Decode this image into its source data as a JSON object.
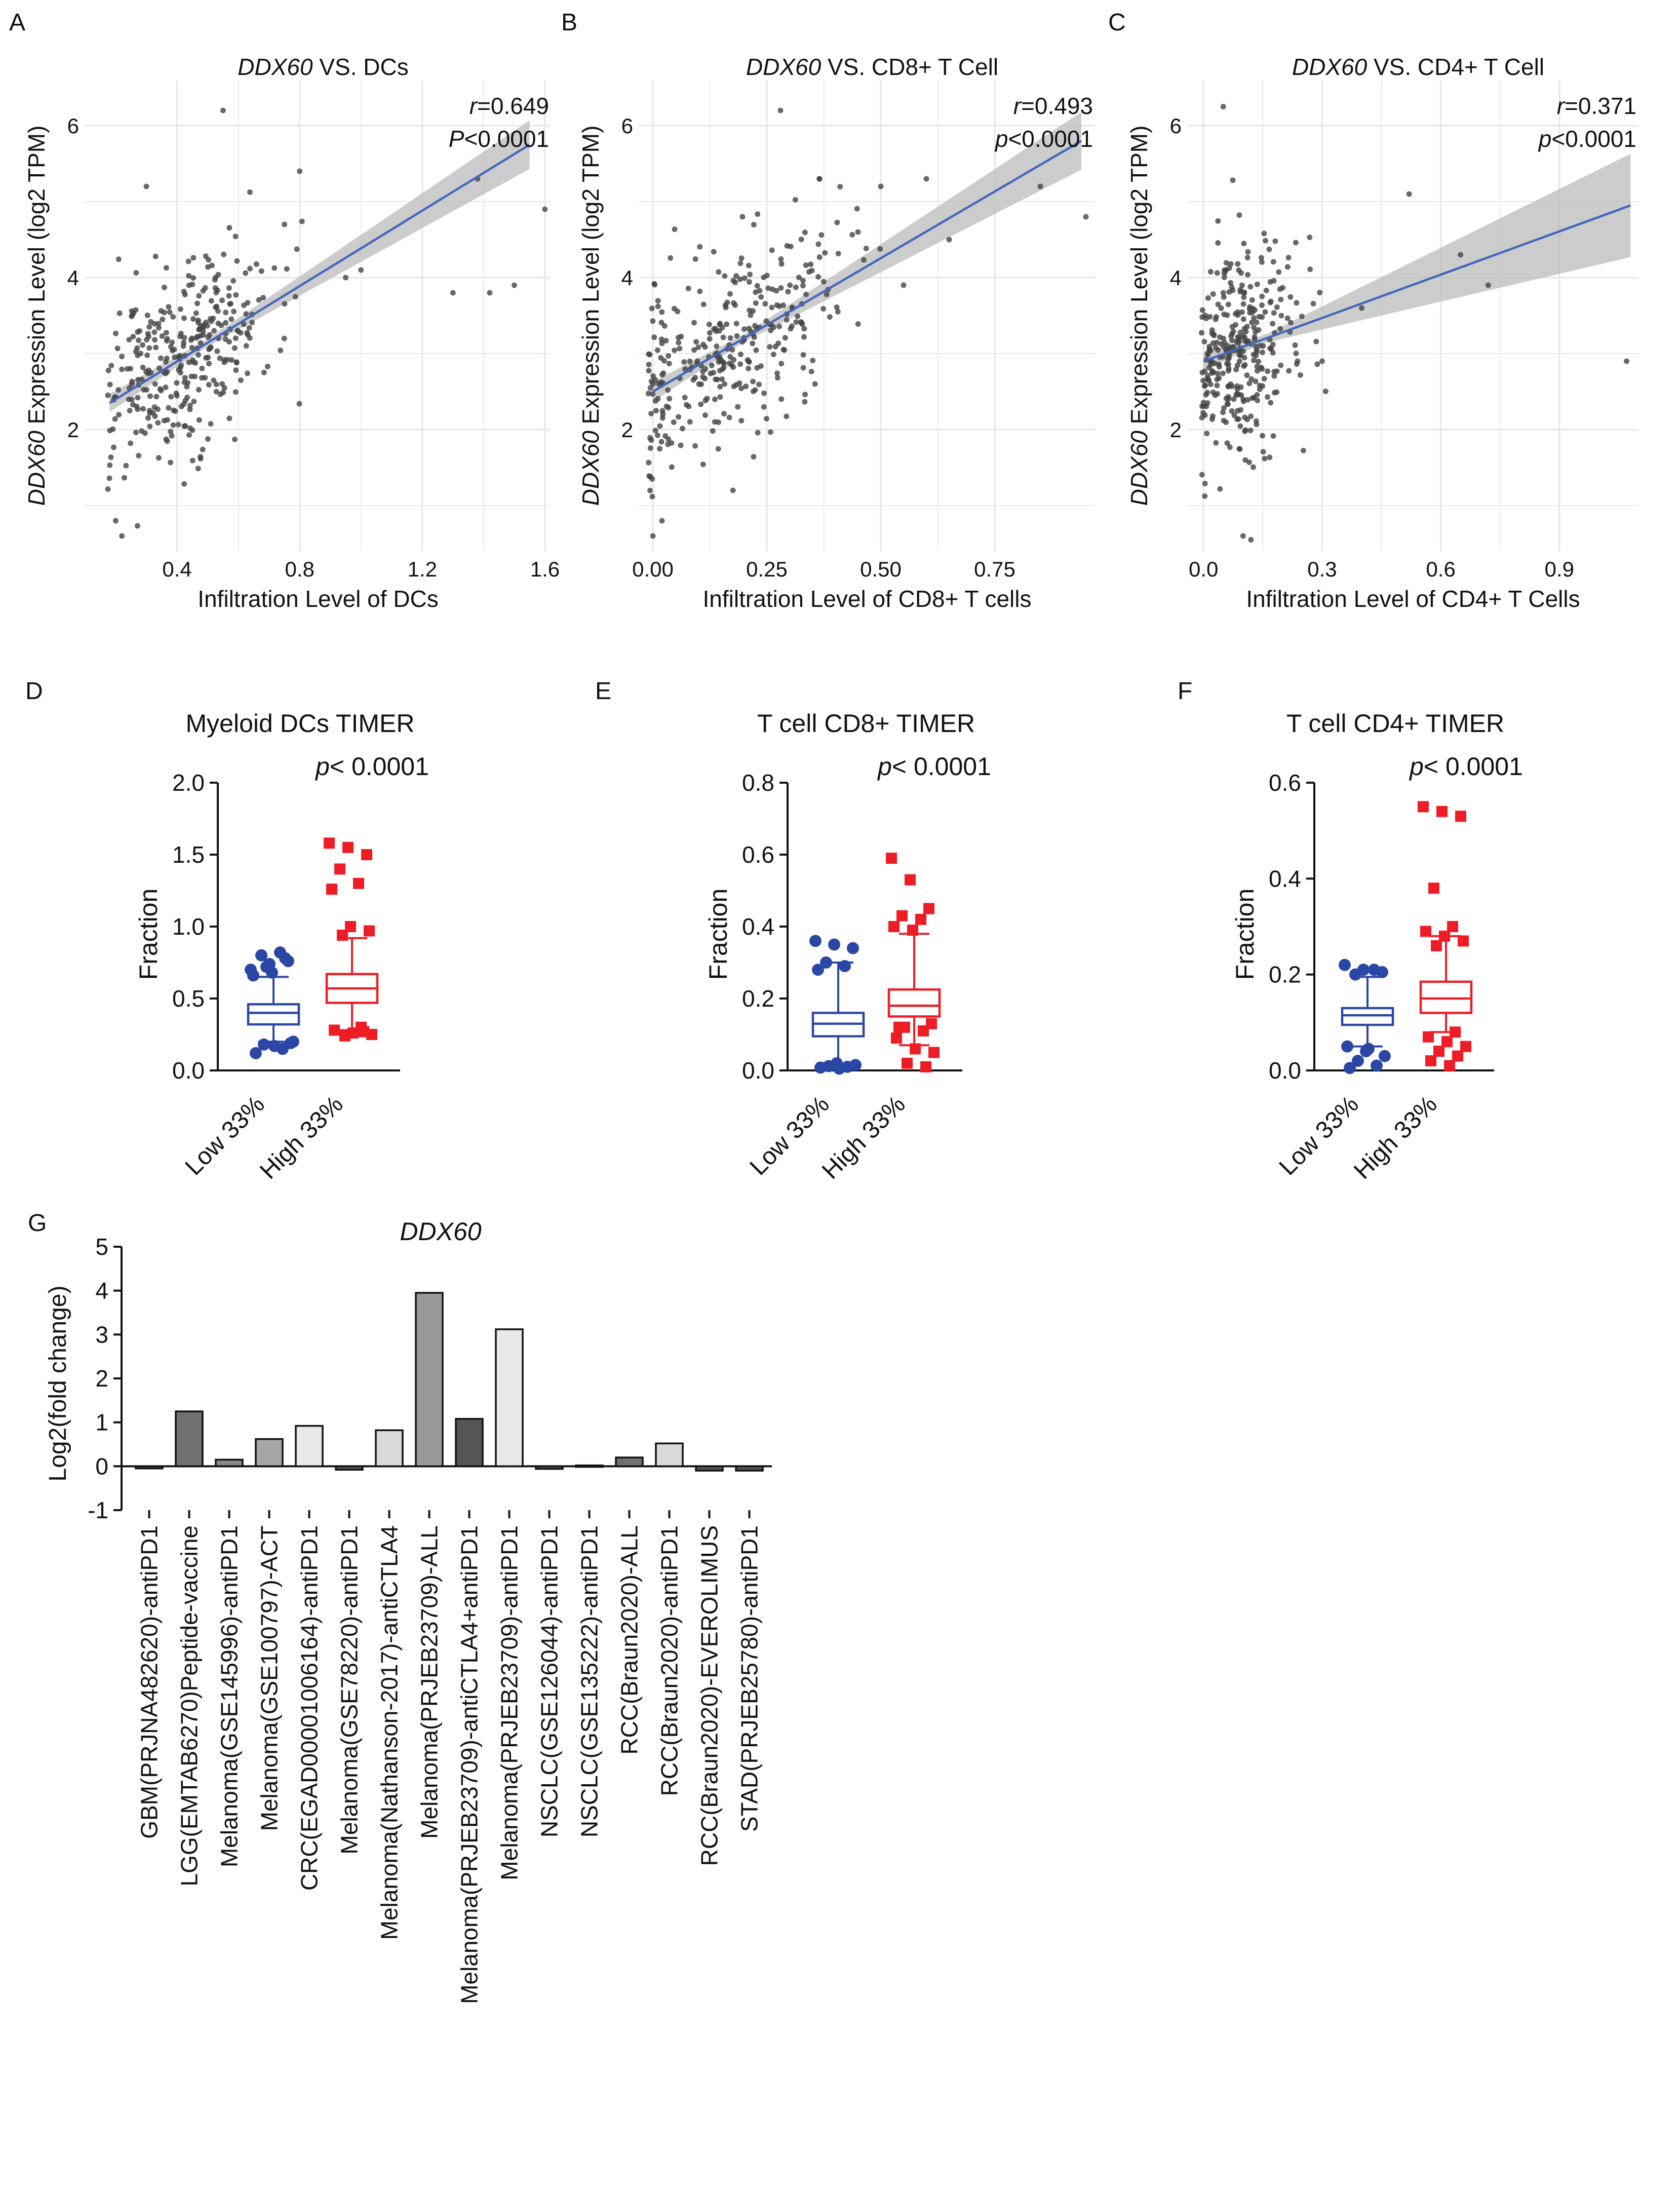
{
  "figure": {
    "panel_letters": [
      "A",
      "B",
      "C",
      "D",
      "E",
      "F",
      "G"
    ],
    "colors": {
      "point": "#444444",
      "fit_line": "#4466bb",
      "ci_band": "#bbbbbb",
      "grid": "#e6e6e6",
      "low_group": "#2a47a5",
      "high_group": "#ee1c25",
      "bar_outline": "#111111"
    }
  },
  "chart_data": [
    {
      "id": "A",
      "type": "scatter",
      "title": {
        "gene": "DDX60",
        "rest": " VS. DCs"
      },
      "stat1": {
        "label": "r",
        "text": "=0.649"
      },
      "stat2": {
        "label": "P",
        "text": "<0.0001"
      },
      "xlabel": "Infiltration Level of DCs",
      "ylabel": {
        "gene": "DDX60",
        "rest": " Expression Level (log2 TPM)"
      },
      "xlim": [
        0.1,
        1.62
      ],
      "ylim": [
        0.4,
        6.6
      ],
      "xticks": [
        0.4,
        0.8,
        1.2,
        1.6
      ],
      "xtick_labels": [
        "0.4",
        "0.8",
        "1.2",
        "1.6"
      ],
      "yticks": [
        2,
        4,
        6
      ],
      "ytick_labels": [
        "2",
        "4",
        "6"
      ],
      "fit": {
        "x0": 0.18,
        "y0": 2.35,
        "x1": 1.55,
        "y1": 5.75,
        "ci_x": [
          0.18,
          0.5,
          1.55
        ],
        "ci_half": [
          0.12,
          0.05,
          0.32
        ]
      },
      "outliers": [
        [
          0.55,
          6.2
        ],
        [
          0.8,
          5.4
        ],
        [
          1.38,
          5.3
        ],
        [
          1.6,
          4.9
        ],
        [
          1.42,
          3.8
        ],
        [
          1.3,
          3.8
        ],
        [
          1.5,
          3.9
        ],
        [
          0.3,
          5.2
        ],
        [
          0.2,
          0.8
        ],
        [
          0.22,
          0.6
        ],
        [
          1.0,
          4.1
        ],
        [
          0.95,
          4.0
        ]
      ]
    },
    {
      "id": "B",
      "type": "scatter",
      "title": {
        "gene": "DDX60",
        "rest": " VS. CD8+ T Cell"
      },
      "stat1": {
        "label": "r",
        "text": "=0.493"
      },
      "stat2": {
        "label": "p",
        "text": "<0.0001"
      },
      "xlabel": "Infiltration Level of CD8+ T cells",
      "ylabel": {
        "gene": "DDX60",
        "rest": " Expression Level (log2 TPM)"
      },
      "xlim": [
        -0.03,
        0.97
      ],
      "ylim": [
        0.4,
        6.6
      ],
      "xticks": [
        0.0,
        0.25,
        0.5,
        0.75
      ],
      "xtick_labels": [
        "0.00",
        "0.25",
        "0.50",
        "0.75"
      ],
      "yticks": [
        2,
        4,
        6
      ],
      "ytick_labels": [
        "2",
        "4",
        "6"
      ],
      "fit": {
        "x0": 0.0,
        "y0": 2.5,
        "x1": 0.94,
        "y1": 5.8,
        "ci_x": [
          0.0,
          0.2,
          0.94
        ],
        "ci_half": [
          0.13,
          0.05,
          0.38
        ]
      },
      "outliers": [
        [
          0.28,
          6.2
        ],
        [
          0.6,
          5.3
        ],
        [
          0.85,
          5.2
        ],
        [
          0.95,
          4.8
        ],
        [
          0.65,
          4.5
        ],
        [
          0.0,
          0.6
        ],
        [
          0.02,
          0.8
        ],
        [
          0.55,
          3.9
        ],
        [
          0.5,
          5.2
        ],
        [
          0.45,
          4.6
        ]
      ]
    },
    {
      "id": "C",
      "type": "scatter",
      "title": {
        "gene": "DDX60",
        "rest": " VS. CD4+ T Cell"
      },
      "stat1": {
        "label": "r",
        "text": "=0.371"
      },
      "stat2": {
        "label": "p",
        "text": "<0.0001"
      },
      "xlabel": "Infiltration Level of CD4+ T Cells",
      "ylabel": {
        "gene": "DDX60",
        "rest": " Expression Level (log2 TPM)"
      },
      "xlim": [
        -0.04,
        1.1
      ],
      "ylim": [
        0.4,
        6.6
      ],
      "xticks": [
        0.0,
        0.3,
        0.6,
        0.9
      ],
      "xtick_labels": [
        "0.0",
        "0.3",
        "0.6",
        "0.9"
      ],
      "yticks": [
        2,
        4,
        6
      ],
      "ytick_labels": [
        "2",
        "4",
        "6"
      ],
      "fit": {
        "x0": 0.0,
        "y0": 2.9,
        "x1": 1.08,
        "y1": 4.95,
        "ci_x": [
          0.0,
          0.15,
          1.08
        ],
        "ci_half": [
          0.12,
          0.05,
          0.68
        ]
      },
      "outliers": [
        [
          0.05,
          6.25
        ],
        [
          0.52,
          5.1
        ],
        [
          0.65,
          4.3
        ],
        [
          0.72,
          3.9
        ],
        [
          1.07,
          2.9
        ],
        [
          0.3,
          2.9
        ],
        [
          0.1,
          0.6
        ],
        [
          0.12,
          0.55
        ],
        [
          0.4,
          3.6
        ]
      ]
    },
    {
      "id": "D",
      "type": "box",
      "title": "Myeloid DCs TIMER",
      "pvalue": {
        "label": "p",
        "text": "< 0.0001"
      },
      "ylabel": "Fraction",
      "ylim": [
        0,
        2.0
      ],
      "yticks": [
        0.0,
        0.5,
        1.0,
        1.5,
        2.0
      ],
      "ytick_labels": [
        "0.0",
        "0.5",
        "1.0",
        "1.5",
        "2.0"
      ],
      "categories": [
        "Low 33%",
        "High 33%"
      ],
      "boxes": [
        {
          "whisker_low": 0.2,
          "q1": 0.32,
          "median": 0.4,
          "q3": 0.46,
          "whisker_high": 0.65,
          "outliers": [
            0.7,
            0.74,
            0.76,
            0.8,
            0.82,
            0.66,
            0.68,
            0.19,
            0.18,
            0.15,
            0.12,
            0.17,
            0.2,
            0.72,
            0.78
          ]
        },
        {
          "whisker_low": 0.28,
          "q1": 0.47,
          "median": 0.57,
          "q3": 0.67,
          "whisker_high": 0.92,
          "outliers": [
            1.58,
            1.55,
            1.5,
            1.4,
            1.3,
            1.26,
            1.0,
            0.97,
            0.94,
            0.3,
            0.28,
            0.26,
            0.25,
            0.24,
            0.27
          ]
        }
      ]
    },
    {
      "id": "E",
      "type": "box",
      "title": "T cell CD8+ TIMER",
      "pvalue": {
        "label": "p",
        "text": "< 0.0001"
      },
      "ylabel": "Fraction",
      "ylim": [
        0,
        0.8
      ],
      "yticks": [
        0.0,
        0.2,
        0.4,
        0.6,
        0.8
      ],
      "ytick_labels": [
        "0.0",
        "0.2",
        "0.4",
        "0.6",
        "0.8"
      ],
      "categories": [
        "Low 33%",
        "High 33%"
      ],
      "boxes": [
        {
          "whisker_low": 0.01,
          "q1": 0.095,
          "median": 0.13,
          "q3": 0.16,
          "whisker_high": 0.3,
          "outliers": [
            0.36,
            0.35,
            0.34,
            0.3,
            0.29,
            0.28,
            0.02,
            0.015,
            0.012,
            0.01,
            0.008,
            0.005
          ]
        },
        {
          "whisker_low": 0.07,
          "q1": 0.15,
          "median": 0.18,
          "q3": 0.225,
          "whisker_high": 0.38,
          "outliers": [
            0.59,
            0.53,
            0.45,
            0.43,
            0.42,
            0.4,
            0.39,
            0.13,
            0.12,
            0.11,
            0.09,
            0.06,
            0.05,
            0.02,
            0.01,
            0.12
          ]
        }
      ]
    },
    {
      "id": "F",
      "type": "box",
      "title": "T cell CD4+ TIMER",
      "pvalue": {
        "label": "p",
        "text": "< 0.0001"
      },
      "ylabel": "Fraction",
      "ylim": [
        0,
        0.6
      ],
      "yticks": [
        0.0,
        0.2,
        0.4,
        0.6
      ],
      "ytick_labels": [
        "0.0",
        "0.2",
        "0.4",
        "0.6"
      ],
      "categories": [
        "Low 33%",
        "High 33%"
      ],
      "boxes": [
        {
          "whisker_low": 0.05,
          "q1": 0.095,
          "median": 0.115,
          "q3": 0.13,
          "whisker_high": 0.195,
          "outliers": [
            0.22,
            0.21,
            0.205,
            0.2,
            0.21,
            0.05,
            0.04,
            0.03,
            0.02,
            0.01,
            0.005,
            0.045
          ]
        },
        {
          "whisker_low": 0.08,
          "q1": 0.12,
          "median": 0.15,
          "q3": 0.185,
          "whisker_high": 0.28,
          "outliers": [
            0.55,
            0.54,
            0.53,
            0.38,
            0.3,
            0.29,
            0.28,
            0.27,
            0.26,
            0.08,
            0.07,
            0.06,
            0.05,
            0.04,
            0.03,
            0.02,
            0.01
          ]
        }
      ]
    },
    {
      "id": "G",
      "type": "bar",
      "title": "DDX60",
      "ylabel": "Log2(fold change)",
      "ylim": [
        -1,
        5
      ],
      "yticks": [
        -1,
        0,
        1,
        2,
        3,
        4,
        5
      ],
      "ytick_labels": [
        "-1",
        "0",
        "1",
        "2",
        "3",
        "4",
        "5"
      ],
      "categories": [
        "GBM(PRJNA482620)-antiPD1",
        "LGG(EMTAB6270)Peptide-vaccine",
        "Melanoma(GSE145996)-antiPD1",
        "Melanoma(GSE100797)-ACT",
        "CRC(EGAD00001006164)-antiPD1",
        "Melanoma(GSE78220)-antiPD1",
        "Melanoma(Nathanson-2017)-antiCTLA4",
        "Melanoma(PRJEB23709)-ALL",
        "Melanoma(PRJEB23709)-antiCTLA4+antiPD1",
        "Melanoma(PRJEB23709)-antiPD1",
        "NSCLC(GSE126044)-antiPD1",
        "NSCLC(GSE135222)-antiPD1",
        "RCC(Braun2020)-ALL",
        "RCC(Braun2020)-antiPD1",
        "RCC(Braun2020)-EVEROLIMUS",
        "STAD(PRJEB25780)-antiPD1"
      ],
      "values": [
        -0.05,
        1.25,
        0.15,
        0.62,
        0.92,
        -0.08,
        0.82,
        3.95,
        1.08,
        3.12,
        -0.06,
        0.02,
        0.2,
        0.52,
        -0.1,
        -0.1
      ],
      "bar_colors": [
        "#555555",
        "#707070",
        "#888888",
        "#a6a6a6",
        "#e8eae8",
        "#555555",
        "#d8dbd8",
        "#999999",
        "#555555",
        "#e8eae8",
        "#555555",
        "#555555",
        "#707070",
        "#d8dbd8",
        "#555555",
        "#555555"
      ]
    }
  ]
}
